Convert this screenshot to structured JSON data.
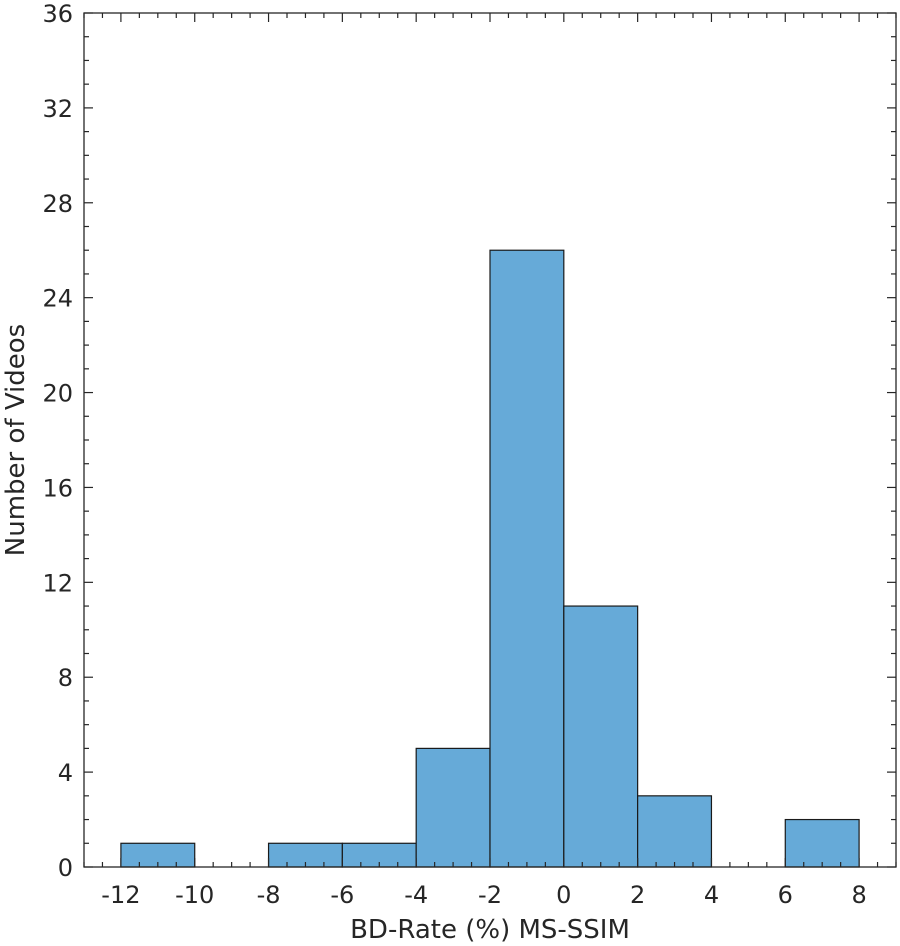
{
  "chart_data": {
    "type": "bar",
    "bins": [
      {
        "x0": -12,
        "x1": -10,
        "count": 1
      },
      {
        "x0": -8,
        "x1": -6,
        "count": 1
      },
      {
        "x0": -6,
        "x1": -4,
        "count": 1
      },
      {
        "x0": -4,
        "x1": -2,
        "count": 5
      },
      {
        "x0": -2,
        "x1": 0,
        "count": 26
      },
      {
        "x0": 0,
        "x1": 2,
        "count": 11
      },
      {
        "x0": 2,
        "x1": 4,
        "count": 3
      },
      {
        "x0": 6,
        "x1": 8,
        "count": 2
      }
    ],
    "xlabel": "BD-Rate (%) MS-SSIM",
    "ylabel": "Number of Videos",
    "xlim": [
      -13,
      9
    ],
    "ylim": [
      0,
      36
    ],
    "xticks": [
      -12,
      -10,
      -8,
      -6,
      -4,
      -2,
      0,
      2,
      4,
      6,
      8
    ],
    "yticks": [
      0,
      4,
      8,
      12,
      16,
      20,
      24,
      28,
      32,
      36
    ],
    "grid": false,
    "bar_color": "#66aad8"
  }
}
